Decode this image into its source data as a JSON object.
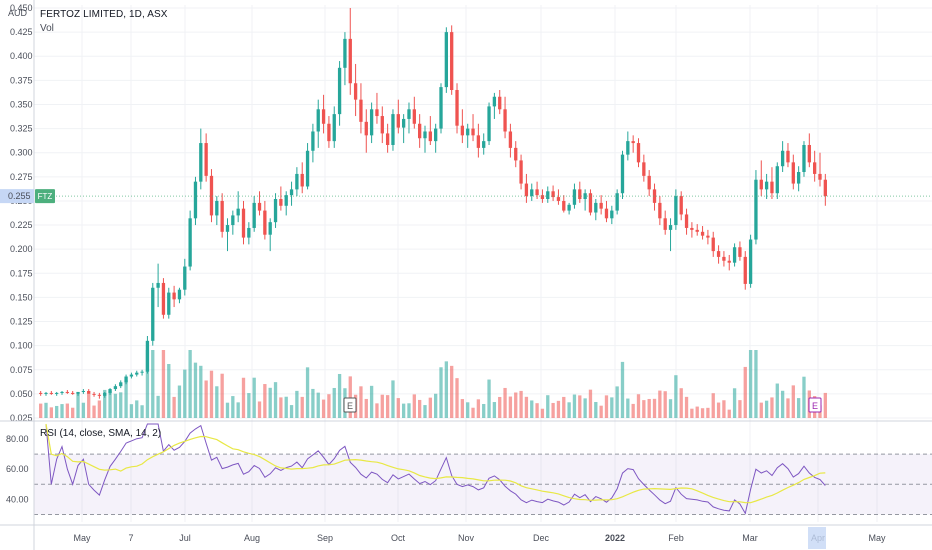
{
  "header": {
    "title": "FERTOZ LIMITED, 1D, ASX",
    "vol_label": "Vol",
    "currency": "AUD",
    "rsi_label": "RSI (14, close, SMA, 14, 2)"
  },
  "price_badge": {
    "value": "0.255",
    "symbol": "FTZ"
  },
  "colors": {
    "up": "#26a69a",
    "down": "#ef5350",
    "rsi_line": "#7e57c2",
    "rsi_ma": "#e8e845",
    "badge": "#4caf7d",
    "axis_highlight": "#c6d7f5"
  },
  "chart_data": {
    "type": "candlestick",
    "title": "FERTOZ LIMITED, 1D, ASX",
    "ylabel": "AUD",
    "ylim": [
      0.025,
      0.45
    ],
    "y_ticks": [
      "0.025",
      "0.050",
      "0.075",
      "0.100",
      "0.125",
      "0.150",
      "0.175",
      "0.200",
      "0.225",
      "0.250",
      "0.275",
      "0.300",
      "0.325",
      "0.350",
      "0.375",
      "0.400",
      "0.425",
      "0.450"
    ],
    "x_ticks": [
      "May",
      "7",
      "Jul",
      "Aug",
      "Sep",
      "Oct",
      "Nov",
      "Dec",
      "2022",
      "Feb",
      "Mar",
      "Apr",
      "May"
    ],
    "price_series": [
      [
        0.051,
        0.053,
        0.048,
        0.05
      ],
      [
        0.05,
        0.052,
        0.048,
        0.051
      ],
      [
        0.051,
        0.053,
        0.049,
        0.05
      ],
      [
        0.05,
        0.052,
        0.048,
        0.051
      ],
      [
        0.051,
        0.053,
        0.049,
        0.052
      ],
      [
        0.052,
        0.054,
        0.05,
        0.051
      ],
      [
        0.051,
        0.053,
        0.049,
        0.05
      ],
      [
        0.05,
        0.052,
        0.048,
        0.052
      ],
      [
        0.052,
        0.055,
        0.05,
        0.053
      ],
      [
        0.053,
        0.055,
        0.051,
        0.05
      ],
      [
        0.05,
        0.052,
        0.047,
        0.049
      ],
      [
        0.049,
        0.051,
        0.045,
        0.048
      ],
      [
        0.048,
        0.052,
        0.046,
        0.051
      ],
      [
        0.051,
        0.056,
        0.049,
        0.055
      ],
      [
        0.055,
        0.06,
        0.053,
        0.058
      ],
      [
        0.058,
        0.064,
        0.056,
        0.062
      ],
      [
        0.062,
        0.07,
        0.06,
        0.068
      ],
      [
        0.068,
        0.072,
        0.066,
        0.07
      ],
      [
        0.07,
        0.074,
        0.068,
        0.072
      ],
      [
        0.072,
        0.075,
        0.069,
        0.073
      ],
      [
        0.073,
        0.11,
        0.071,
        0.105
      ],
      [
        0.105,
        0.165,
        0.1,
        0.16
      ],
      [
        0.16,
        0.185,
        0.14,
        0.165
      ],
      [
        0.165,
        0.17,
        0.128,
        0.132
      ],
      [
        0.132,
        0.16,
        0.128,
        0.155
      ],
      [
        0.155,
        0.162,
        0.14,
        0.148
      ],
      [
        0.148,
        0.16,
        0.144,
        0.158
      ],
      [
        0.158,
        0.19,
        0.152,
        0.182
      ],
      [
        0.182,
        0.24,
        0.178,
        0.232
      ],
      [
        0.232,
        0.275,
        0.225,
        0.27
      ],
      [
        0.27,
        0.325,
        0.262,
        0.31
      ],
      [
        0.31,
        0.32,
        0.27,
        0.276
      ],
      [
        0.276,
        0.283,
        0.228,
        0.235
      ],
      [
        0.235,
        0.255,
        0.225,
        0.25
      ],
      [
        0.25,
        0.258,
        0.212,
        0.218
      ],
      [
        0.218,
        0.232,
        0.198,
        0.225
      ],
      [
        0.225,
        0.24,
        0.215,
        0.235
      ],
      [
        0.235,
        0.26,
        0.228,
        0.242
      ],
      [
        0.242,
        0.25,
        0.205,
        0.212
      ],
      [
        0.212,
        0.228,
        0.205,
        0.222
      ],
      [
        0.222,
        0.255,
        0.218,
        0.248
      ],
      [
        0.248,
        0.26,
        0.235,
        0.24
      ],
      [
        0.24,
        0.25,
        0.21,
        0.215
      ],
      [
        0.215,
        0.232,
        0.198,
        0.228
      ],
      [
        0.228,
        0.258,
        0.222,
        0.252
      ],
      [
        0.252,
        0.265,
        0.24,
        0.245
      ],
      [
        0.245,
        0.26,
        0.235,
        0.256
      ],
      [
        0.256,
        0.27,
        0.245,
        0.262
      ],
      [
        0.262,
        0.285,
        0.255,
        0.278
      ],
      [
        0.278,
        0.29,
        0.258,
        0.265
      ],
      [
        0.265,
        0.31,
        0.262,
        0.302
      ],
      [
        0.302,
        0.33,
        0.29,
        0.322
      ],
      [
        0.322,
        0.355,
        0.305,
        0.345
      ],
      [
        0.345,
        0.36,
        0.32,
        0.33
      ],
      [
        0.33,
        0.338,
        0.305,
        0.312
      ],
      [
        0.312,
        0.348,
        0.305,
        0.34
      ],
      [
        0.34,
        0.395,
        0.328,
        0.388
      ],
      [
        0.388,
        0.425,
        0.37,
        0.418
      ],
      [
        0.418,
        0.45,
        0.36,
        0.372
      ],
      [
        0.372,
        0.392,
        0.338,
        0.355
      ],
      [
        0.355,
        0.372,
        0.32,
        0.332
      ],
      [
        0.332,
        0.345,
        0.3,
        0.318
      ],
      [
        0.318,
        0.352,
        0.31,
        0.345
      ],
      [
        0.345,
        0.362,
        0.33,
        0.338
      ],
      [
        0.338,
        0.348,
        0.31,
        0.32
      ],
      [
        0.32,
        0.33,
        0.3,
        0.308
      ],
      [
        0.308,
        0.345,
        0.302,
        0.34
      ],
      [
        0.34,
        0.355,
        0.32,
        0.326
      ],
      [
        0.326,
        0.34,
        0.31,
        0.335
      ],
      [
        0.335,
        0.352,
        0.32,
        0.345
      ],
      [
        0.345,
        0.358,
        0.325,
        0.33
      ],
      [
        0.33,
        0.34,
        0.305,
        0.315
      ],
      [
        0.315,
        0.328,
        0.3,
        0.322
      ],
      [
        0.322,
        0.338,
        0.308,
        0.312
      ],
      [
        0.312,
        0.33,
        0.3,
        0.325
      ],
      [
        0.325,
        0.372,
        0.32,
        0.368
      ],
      [
        0.368,
        0.43,
        0.362,
        0.425
      ],
      [
        0.425,
        0.432,
        0.36,
        0.365
      ],
      [
        0.365,
        0.372,
        0.32,
        0.328
      ],
      [
        0.328,
        0.345,
        0.31,
        0.318
      ],
      [
        0.318,
        0.33,
        0.305,
        0.325
      ],
      [
        0.325,
        0.34,
        0.312,
        0.318
      ],
      [
        0.318,
        0.33,
        0.295,
        0.305
      ],
      [
        0.305,
        0.32,
        0.298,
        0.312
      ],
      [
        0.312,
        0.352,
        0.308,
        0.348
      ],
      [
        0.348,
        0.362,
        0.335,
        0.358
      ],
      [
        0.358,
        0.365,
        0.34,
        0.345
      ],
      [
        0.345,
        0.358,
        0.315,
        0.322
      ],
      [
        0.322,
        0.33,
        0.295,
        0.305
      ],
      [
        0.305,
        0.312,
        0.285,
        0.292
      ],
      [
        0.292,
        0.298,
        0.262,
        0.268
      ],
      [
        0.268,
        0.278,
        0.248,
        0.255
      ],
      [
        0.255,
        0.268,
        0.25,
        0.262
      ],
      [
        0.262,
        0.27,
        0.252,
        0.256
      ],
      [
        0.256,
        0.262,
        0.248,
        0.252
      ],
      [
        0.252,
        0.265,
        0.248,
        0.26
      ],
      [
        0.26,
        0.266,
        0.25,
        0.254
      ],
      [
        0.254,
        0.262,
        0.246,
        0.25
      ],
      [
        0.25,
        0.256,
        0.238,
        0.24
      ],
      [
        0.24,
        0.248,
        0.236,
        0.246
      ],
      [
        0.246,
        0.268,
        0.242,
        0.262
      ],
      [
        0.262,
        0.27,
        0.248,
        0.252
      ],
      [
        0.252,
        0.262,
        0.24,
        0.258
      ],
      [
        0.258,
        0.262,
        0.235,
        0.238
      ],
      [
        0.238,
        0.252,
        0.23,
        0.248
      ],
      [
        0.248,
        0.256,
        0.236,
        0.242
      ],
      [
        0.242,
        0.25,
        0.228,
        0.232
      ],
      [
        0.232,
        0.245,
        0.226,
        0.24
      ],
      [
        0.24,
        0.262,
        0.236,
        0.258
      ],
      [
        0.258,
        0.302,
        0.252,
        0.298
      ],
      [
        0.298,
        0.322,
        0.292,
        0.312
      ],
      [
        0.312,
        0.318,
        0.3,
        0.31
      ],
      [
        0.31,
        0.315,
        0.285,
        0.29
      ],
      [
        0.29,
        0.298,
        0.27,
        0.276
      ],
      [
        0.276,
        0.282,
        0.255,
        0.262
      ],
      [
        0.262,
        0.268,
        0.24,
        0.248
      ],
      [
        0.248,
        0.255,
        0.225,
        0.232
      ],
      [
        0.232,
        0.24,
        0.215,
        0.22
      ],
      [
        0.22,
        0.232,
        0.198,
        0.225
      ],
      [
        0.225,
        0.262,
        0.22,
        0.255
      ],
      [
        0.255,
        0.26,
        0.23,
        0.236
      ],
      [
        0.236,
        0.242,
        0.215,
        0.222
      ],
      [
        0.222,
        0.228,
        0.212,
        0.22
      ],
      [
        0.22,
        0.226,
        0.214,
        0.218
      ],
      [
        0.218,
        0.224,
        0.21,
        0.214
      ],
      [
        0.214,
        0.22,
        0.205,
        0.212
      ],
      [
        0.212,
        0.218,
        0.192,
        0.198
      ],
      [
        0.198,
        0.204,
        0.185,
        0.192
      ],
      [
        0.192,
        0.198,
        0.182,
        0.188
      ],
      [
        0.188,
        0.194,
        0.178,
        0.186
      ],
      [
        0.186,
        0.206,
        0.182,
        0.202
      ],
      [
        0.202,
        0.208,
        0.188,
        0.192
      ],
      [
        0.192,
        0.198,
        0.158,
        0.164
      ],
      [
        0.164,
        0.215,
        0.16,
        0.21
      ],
      [
        0.21,
        0.282,
        0.205,
        0.272
      ],
      [
        0.272,
        0.292,
        0.255,
        0.262
      ],
      [
        0.262,
        0.278,
        0.252,
        0.27
      ],
      [
        0.27,
        0.285,
        0.252,
        0.258
      ],
      [
        0.258,
        0.29,
        0.252,
        0.286
      ],
      [
        0.286,
        0.312,
        0.28,
        0.302
      ],
      [
        0.302,
        0.31,
        0.285,
        0.29
      ],
      [
        0.29,
        0.298,
        0.262,
        0.268
      ],
      [
        0.268,
        0.286,
        0.26,
        0.28
      ],
      [
        0.28,
        0.312,
        0.275,
        0.308
      ],
      [
        0.308,
        0.32,
        0.285,
        0.29
      ],
      [
        0.29,
        0.302,
        0.27,
        0.278
      ],
      [
        0.278,
        0.3,
        0.265,
        0.272
      ],
      [
        0.272,
        0.278,
        0.245,
        0.255
      ]
    ],
    "volume_up_color": "#26a69a",
    "rsi": {
      "label": "RSI (14, close, SMA, 14, 2)",
      "ylim": [
        25,
        90
      ],
      "y_ticks": [
        "40.00",
        "60.00",
        "80.00"
      ],
      "bands": [
        70,
        30
      ],
      "mid": 50
    }
  }
}
